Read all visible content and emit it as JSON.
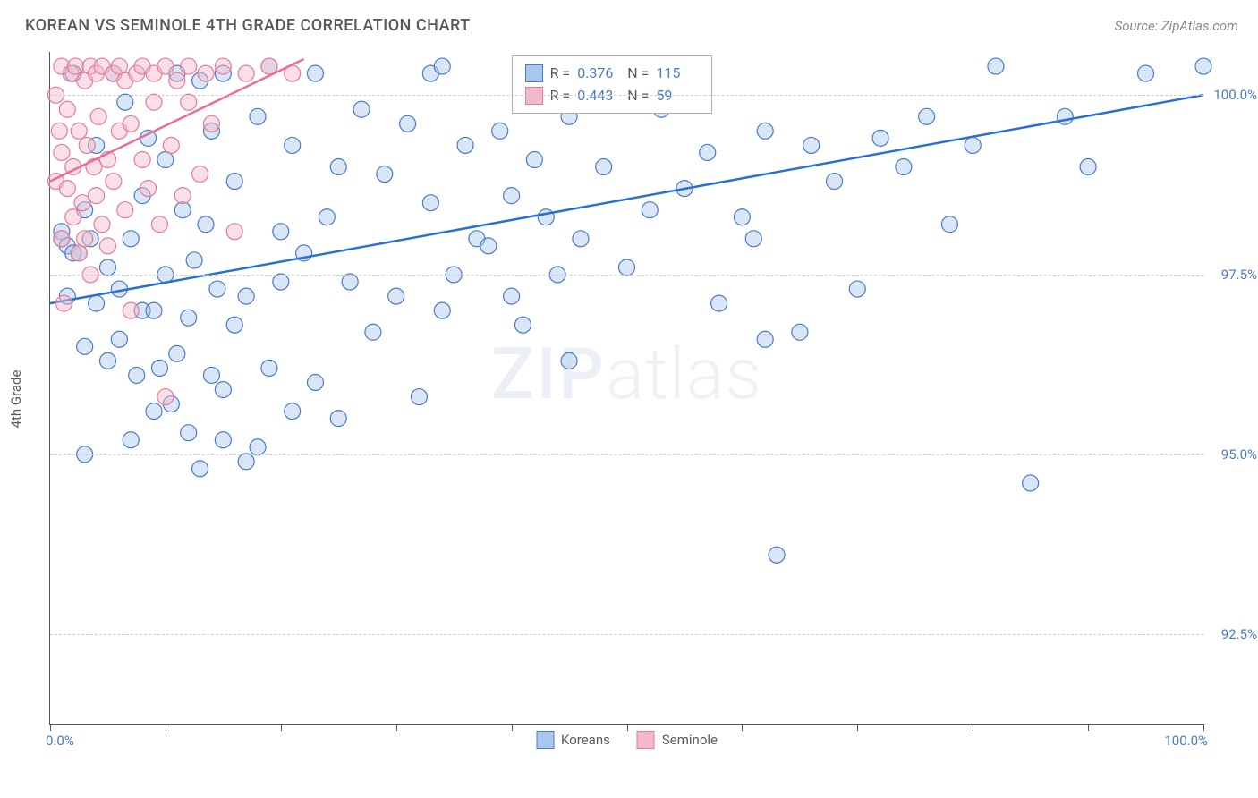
{
  "title": "KOREAN VS SEMINOLE 4TH GRADE CORRELATION CHART",
  "source": "Source: ZipAtlas.com",
  "y_axis_title": "4th Grade",
  "watermark_a": "ZIP",
  "watermark_b": "atlas",
  "chart": {
    "type": "scatter",
    "background_color": "#ffffff",
    "grid_color": "#d0d0d0",
    "axis_color": "#555555",
    "label_color": "#4a7bc8",
    "text_color": "#5a5a5a",
    "title_fontsize": 18,
    "label_fontsize": 15,
    "xlim": [
      0,
      100
    ],
    "ylim": [
      91.25,
      100.6
    ],
    "xticks": [
      0,
      10,
      20,
      30,
      40,
      50,
      60,
      70,
      80,
      90,
      100
    ],
    "yticks": [
      92.5,
      95.0,
      97.5,
      100.0
    ],
    "ytick_labels": [
      "92.5%",
      "95.0%",
      "97.5%",
      "100.0%"
    ],
    "x_min_label": "0.0%",
    "x_max_label": "100.0%",
    "marker_radius": 9,
    "marker_opacity": 0.45,
    "line_width": 2.5,
    "stats_box": {
      "left_pct": 40.0,
      "top_pct": 0.5
    },
    "series": [
      {
        "name": "Koreans",
        "fill": "#a8c7ec",
        "stroke": "#4a7bc8",
        "line_color": "#2a6fd6",
        "R": "0.376",
        "N": "115",
        "trend": {
          "x1": 0,
          "y1": 97.1,
          "x2": 100,
          "y2": 100.0
        },
        "points": [
          [
            1,
            98.1
          ],
          [
            1,
            98.0
          ],
          [
            1.5,
            97.9
          ],
          [
            1.5,
            97.2
          ],
          [
            2,
            97.8
          ],
          [
            2,
            100.3
          ],
          [
            2.5,
            97.8
          ],
          [
            3,
            95.0
          ],
          [
            3,
            98.4
          ],
          [
            3,
            96.5
          ],
          [
            3.5,
            98.0
          ],
          [
            4,
            97.1
          ],
          [
            4,
            99.3
          ],
          [
            5,
            96.3
          ],
          [
            5,
            97.6
          ],
          [
            5.5,
            100.3
          ],
          [
            6,
            97.3
          ],
          [
            6,
            96.6
          ],
          [
            6.5,
            99.9
          ],
          [
            7,
            98.0
          ],
          [
            7,
            95.2
          ],
          [
            7.5,
            96.1
          ],
          [
            8,
            97.0
          ],
          [
            8,
            98.6
          ],
          [
            8.5,
            99.4
          ],
          [
            9,
            95.6
          ],
          [
            9,
            97.0
          ],
          [
            9.5,
            96.2
          ],
          [
            10,
            97.5
          ],
          [
            10,
            99.1
          ],
          [
            10.5,
            95.7
          ],
          [
            11,
            96.4
          ],
          [
            11,
            100.3
          ],
          [
            11.5,
            98.4
          ],
          [
            12,
            96.9
          ],
          [
            12,
            95.3
          ],
          [
            12.5,
            97.7
          ],
          [
            13,
            94.8
          ],
          [
            13,
            100.2
          ],
          [
            13.5,
            98.2
          ],
          [
            14,
            99.5
          ],
          [
            14,
            96.1
          ],
          [
            14.5,
            97.3
          ],
          [
            15,
            95.9
          ],
          [
            15,
            95.2
          ],
          [
            15,
            100.3
          ],
          [
            16,
            98.8
          ],
          [
            16,
            96.8
          ],
          [
            17,
            97.2
          ],
          [
            17,
            94.9
          ],
          [
            18,
            95.1
          ],
          [
            18,
            99.7
          ],
          [
            19,
            96.2
          ],
          [
            19,
            100.4
          ],
          [
            20,
            98.1
          ],
          [
            20,
            97.4
          ],
          [
            21,
            99.3
          ],
          [
            21,
            95.6
          ],
          [
            22,
            97.8
          ],
          [
            23,
            96.0
          ],
          [
            23,
            100.3
          ],
          [
            24,
            98.3
          ],
          [
            25,
            99.0
          ],
          [
            25,
            95.5
          ],
          [
            26,
            97.4
          ],
          [
            27,
            99.8
          ],
          [
            28,
            96.7
          ],
          [
            29,
            98.9
          ],
          [
            30,
            97.2
          ],
          [
            31,
            99.6
          ],
          [
            32,
            95.8
          ],
          [
            33,
            98.5
          ],
          [
            33,
            100.3
          ],
          [
            34,
            97.0
          ],
          [
            34,
            100.4
          ],
          [
            35,
            97.5
          ],
          [
            36,
            99.3
          ],
          [
            37,
            98.0
          ],
          [
            38,
            97.9
          ],
          [
            39,
            99.5
          ],
          [
            40,
            98.6
          ],
          [
            40,
            97.2
          ],
          [
            41,
            96.8
          ],
          [
            42,
            99.1
          ],
          [
            43,
            98.3
          ],
          [
            44,
            97.5
          ],
          [
            45,
            96.3
          ],
          [
            45,
            99.7
          ],
          [
            46,
            98.0
          ],
          [
            48,
            99.0
          ],
          [
            50,
            97.6
          ],
          [
            52,
            98.4
          ],
          [
            53,
            99.8
          ],
          [
            55,
            98.7
          ],
          [
            57,
            99.2
          ],
          [
            58,
            97.1
          ],
          [
            60,
            98.3
          ],
          [
            61,
            98.0
          ],
          [
            62,
            96.6
          ],
          [
            62,
            99.5
          ],
          [
            63,
            93.6
          ],
          [
            65,
            96.7
          ],
          [
            66,
            99.3
          ],
          [
            68,
            98.8
          ],
          [
            70,
            97.3
          ],
          [
            72,
            99.4
          ],
          [
            74,
            99.0
          ],
          [
            76,
            99.7
          ],
          [
            78,
            98.2
          ],
          [
            80,
            99.3
          ],
          [
            82,
            100.4
          ],
          [
            85,
            94.6
          ],
          [
            88,
            99.7
          ],
          [
            90,
            99.0
          ],
          [
            95,
            100.3
          ],
          [
            100,
            100.4
          ]
        ]
      },
      {
        "name": "Seminole",
        "fill": "#f5b8c8",
        "stroke": "#e67a9a",
        "line_color": "#f06a98",
        "R": "0.443",
        "N": "59",
        "trend": {
          "x1": 0,
          "y1": 98.8,
          "x2": 22,
          "y2": 100.5
        },
        "points": [
          [
            0.5,
            98.8
          ],
          [
            0.5,
            100.0
          ],
          [
            0.8,
            99.5
          ],
          [
            1,
            98.0
          ],
          [
            1,
            99.2
          ],
          [
            1,
            100.4
          ],
          [
            1.2,
            97.1
          ],
          [
            1.5,
            98.7
          ],
          [
            1.5,
            99.8
          ],
          [
            1.8,
            100.3
          ],
          [
            2,
            98.3
          ],
          [
            2,
            99.0
          ],
          [
            2.2,
            100.4
          ],
          [
            2.5,
            97.8
          ],
          [
            2.5,
            99.5
          ],
          [
            2.8,
            98.5
          ],
          [
            3,
            100.2
          ],
          [
            3,
            98.0
          ],
          [
            3.2,
            99.3
          ],
          [
            3.5,
            100.4
          ],
          [
            3.5,
            97.5
          ],
          [
            3.8,
            99.0
          ],
          [
            4,
            98.6
          ],
          [
            4,
            100.3
          ],
          [
            4.2,
            99.7
          ],
          [
            4.5,
            98.2
          ],
          [
            4.5,
            100.4
          ],
          [
            5,
            99.1
          ],
          [
            5,
            97.9
          ],
          [
            5.5,
            100.3
          ],
          [
            5.5,
            98.8
          ],
          [
            6,
            99.5
          ],
          [
            6,
            100.4
          ],
          [
            6.5,
            98.4
          ],
          [
            6.5,
            100.2
          ],
          [
            7,
            99.6
          ],
          [
            7,
            97.0
          ],
          [
            7.5,
            100.3
          ],
          [
            8,
            99.1
          ],
          [
            8,
            100.4
          ],
          [
            8.5,
            98.7
          ],
          [
            9,
            99.9
          ],
          [
            9,
            100.3
          ],
          [
            9.5,
            98.2
          ],
          [
            10,
            95.8
          ],
          [
            10,
            100.4
          ],
          [
            10.5,
            99.3
          ],
          [
            11,
            100.2
          ],
          [
            11.5,
            98.6
          ],
          [
            12,
            99.9
          ],
          [
            12,
            100.4
          ],
          [
            13,
            98.9
          ],
          [
            13.5,
            100.3
          ],
          [
            14,
            99.6
          ],
          [
            15,
            100.4
          ],
          [
            16,
            98.1
          ],
          [
            17,
            100.3
          ],
          [
            19,
            100.4
          ],
          [
            21,
            100.3
          ]
        ]
      }
    ],
    "bottom_legend": [
      {
        "label": "Koreans",
        "fill": "#a8c7ec",
        "stroke": "#4a7bc8"
      },
      {
        "label": "Seminole",
        "fill": "#f5b8c8",
        "stroke": "#e67a9a"
      }
    ]
  }
}
